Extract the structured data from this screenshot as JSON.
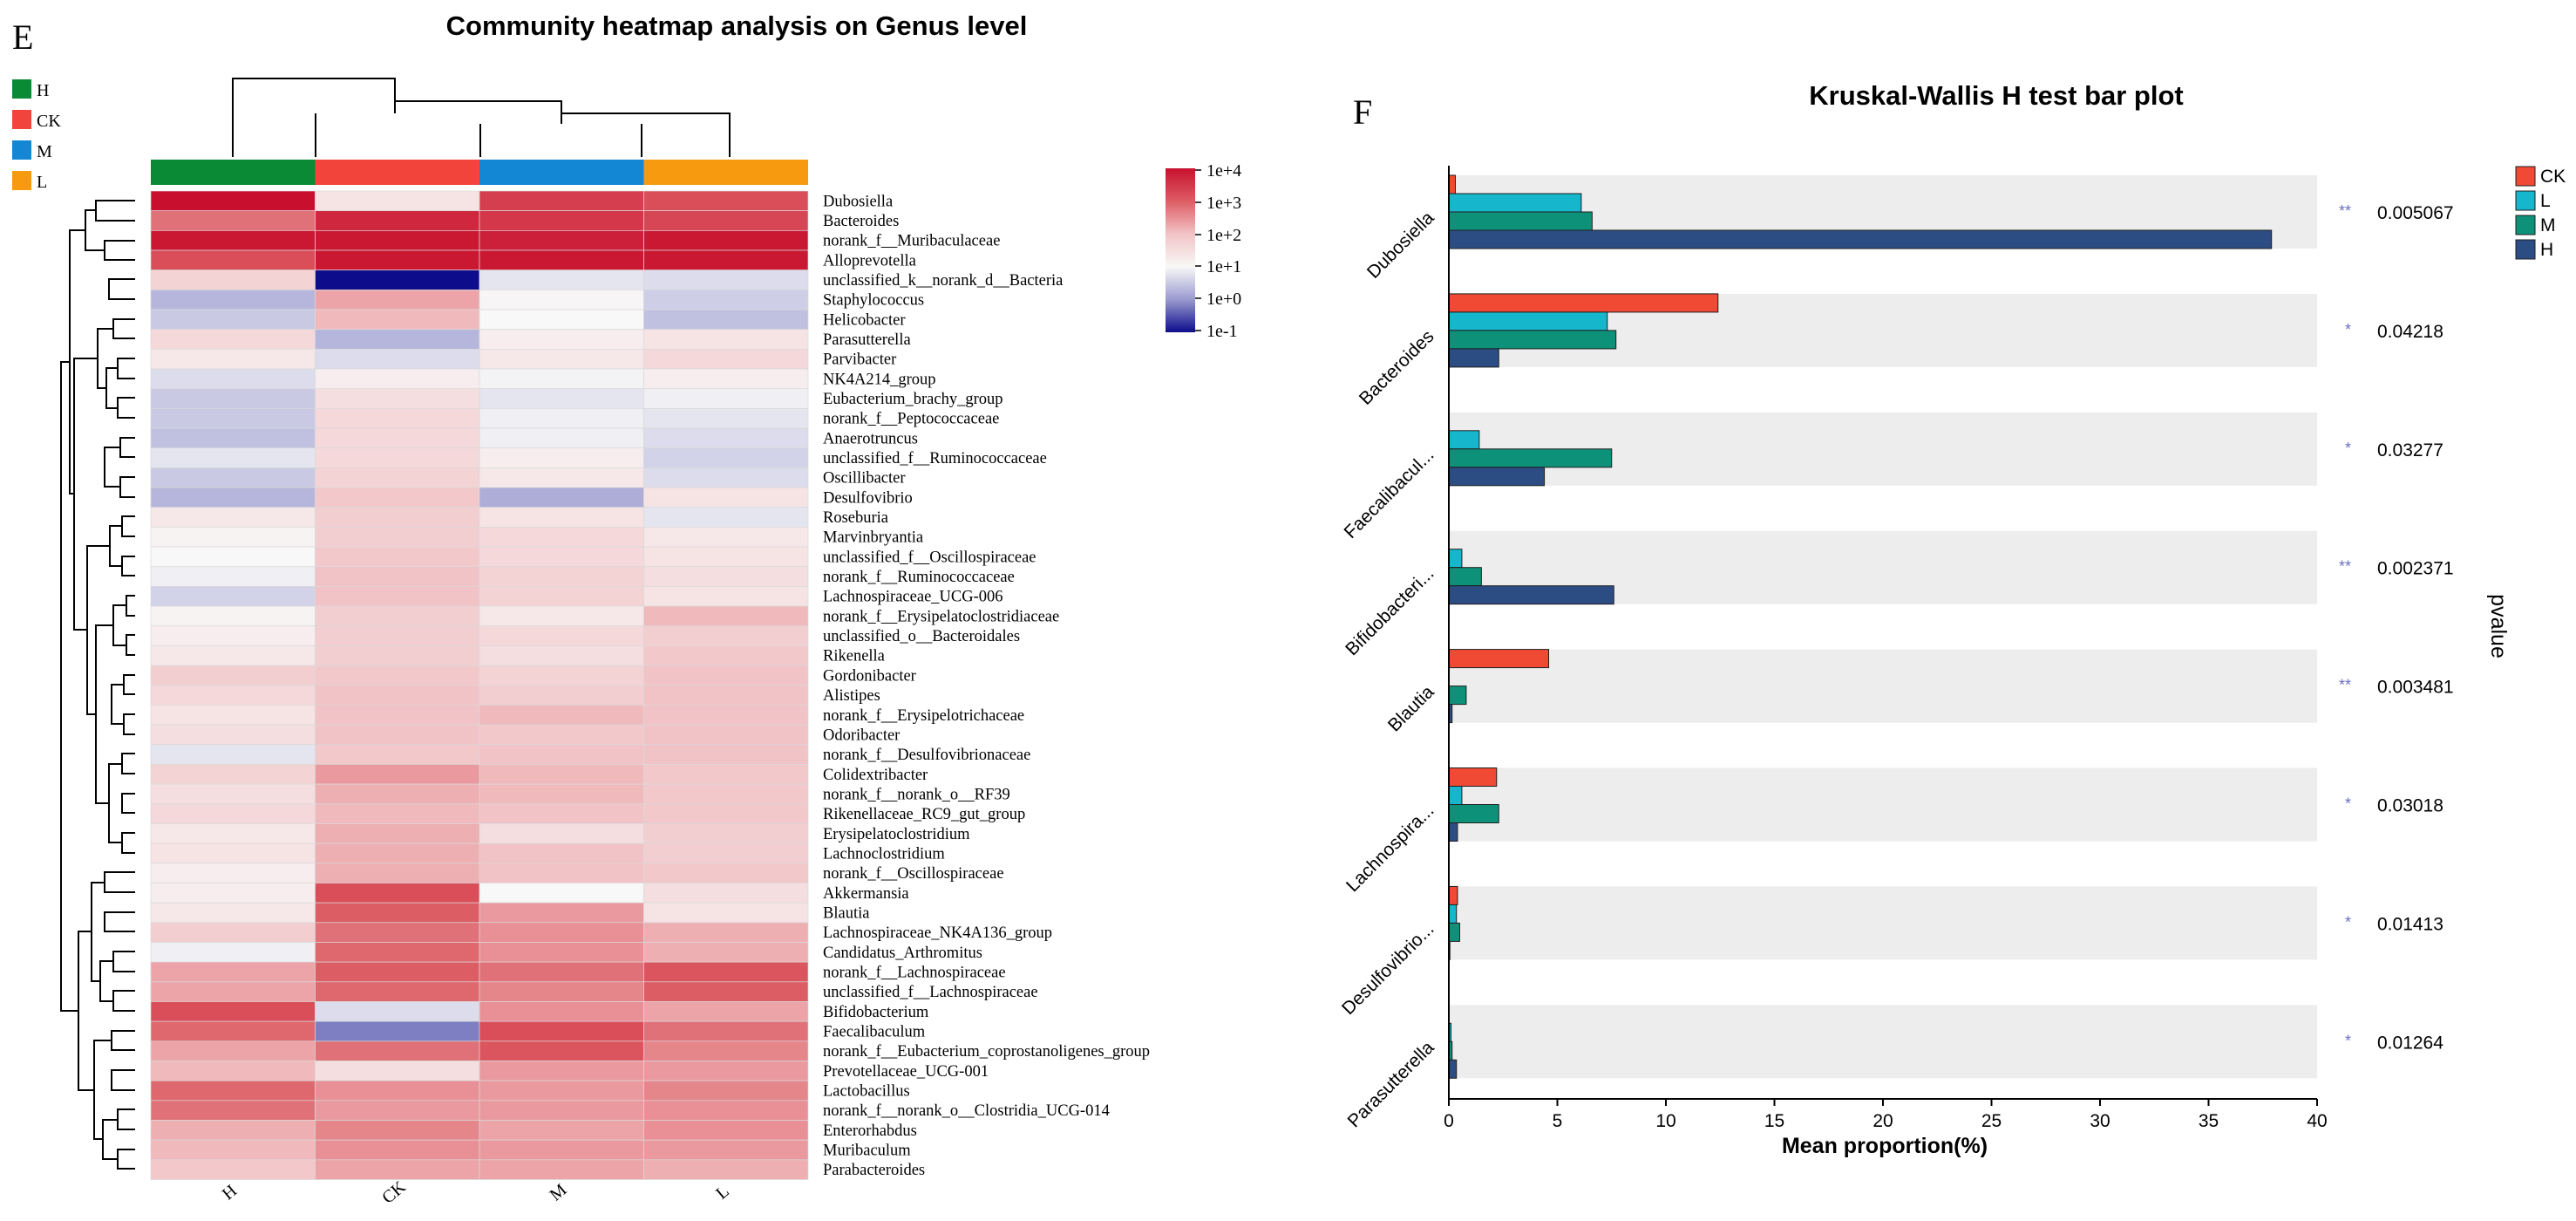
{
  "panel_e": {
    "letter": "E"
  },
  "panel_f": {
    "letter": "F"
  },
  "chart_data": [
    {
      "type": "heatmap",
      "title": "Community heatmap analysis on Genus level",
      "columns": [
        "H",
        "CK",
        "M",
        "L"
      ],
      "group_legend": [
        {
          "name": "H",
          "color": "#0a8a35"
        },
        {
          "name": "CK",
          "color": "#f2443a"
        },
        {
          "name": "M",
          "color": "#1487d4"
        },
        {
          "name": "L",
          "color": "#f79a10"
        }
      ],
      "colorbar": {
        "ticks": [
          "1e+4",
          "1e+3",
          "1e+2",
          "1e+1",
          "1e+0",
          "1e-1"
        ]
      },
      "rows": [
        {
          "name": "Dubosiella",
          "values": [
            4.0,
            1.4,
            3.4,
            3.2
          ]
        },
        {
          "name": "Bacteroides",
          "values": [
            2.8,
            3.7,
            3.5,
            3.3
          ]
        },
        {
          "name": "norank_f__Muribaculaceae",
          "values": [
            3.9,
            3.9,
            3.8,
            3.9
          ]
        },
        {
          "name": "Alloprevotella",
          "values": [
            3.2,
            3.9,
            3.9,
            3.9
          ]
        },
        {
          "name": "unclassified_k__norank_d__Bacteria",
          "values": [
            1.7,
            -1.0,
            0.8,
            0.7
          ]
        },
        {
          "name": "Staphylococcus",
          "values": [
            0.3,
            2.3,
            1.05,
            0.55
          ]
        },
        {
          "name": "Helicobacter",
          "values": [
            0.5,
            2.1,
            1.0,
            0.4
          ]
        },
        {
          "name": "Parasutterella",
          "values": [
            1.6,
            0.3,
            1.2,
            1.4
          ]
        },
        {
          "name": "Parvibacter",
          "values": [
            1.3,
            0.7,
            1.3,
            1.6
          ]
        },
        {
          "name": "NK4A214_group",
          "values": [
            0.7,
            1.2,
            0.95,
            1.2
          ]
        },
        {
          "name": "Eubacterium_brachy_group",
          "values": [
            0.5,
            1.5,
            0.8,
            0.9
          ]
        },
        {
          "name": "norank_f__Peptococcaceae",
          "values": [
            0.5,
            1.6,
            0.9,
            0.8
          ]
        },
        {
          "name": "Anaerotruncus",
          "values": [
            0.4,
            1.6,
            0.9,
            0.7
          ]
        },
        {
          "name": "unclassified_f__Ruminococcaceae",
          "values": [
            0.8,
            1.6,
            1.2,
            0.6
          ]
        },
        {
          "name": "Oscillibacter",
          "values": [
            0.5,
            1.7,
            1.3,
            0.7
          ]
        },
        {
          "name": "Desulfovibrio",
          "values": [
            0.3,
            1.9,
            0.2,
            1.4
          ]
        },
        {
          "name": "Roseburia",
          "values": [
            1.3,
            1.8,
            1.4,
            0.8
          ]
        },
        {
          "name": "Marvinbryantia",
          "values": [
            1.1,
            1.8,
            1.6,
            1.3
          ]
        },
        {
          "name": "unclassified_f__Oscillospiraceae",
          "values": [
            1.0,
            1.9,
            1.6,
            1.4
          ]
        },
        {
          "name": "norank_f__Ruminococcaceae",
          "values": [
            0.9,
            2.0,
            1.7,
            1.5
          ]
        },
        {
          "name": "Lachnospiraceae_UCG-006",
          "values": [
            0.6,
            2.0,
            1.7,
            1.4
          ]
        },
        {
          "name": "norank_f__Erysipelatoclostridiaceae",
          "values": [
            1.1,
            1.8,
            1.3,
            2.1
          ]
        },
        {
          "name": "unclassified_o__Bacteroidales",
          "values": [
            1.2,
            1.8,
            1.6,
            1.8
          ]
        },
        {
          "name": "Rikenella",
          "values": [
            1.3,
            1.8,
            1.5,
            1.9
          ]
        },
        {
          "name": "Gordonibacter",
          "values": [
            1.8,
            1.9,
            1.7,
            2.0
          ]
        },
        {
          "name": "Alistipes",
          "values": [
            1.6,
            2.0,
            1.8,
            2.0
          ]
        },
        {
          "name": "norank_f__Erysipelotrichaceae",
          "values": [
            1.4,
            2.0,
            2.1,
            2.0
          ]
        },
        {
          "name": "Odoribacter",
          "values": [
            1.5,
            2.0,
            1.9,
            2.0
          ]
        },
        {
          "name": "norank_f__Desulfovibrionaceae",
          "values": [
            0.8,
            1.9,
            2.0,
            2.0
          ]
        },
        {
          "name": "Colidextribacter",
          "values": [
            1.7,
            2.4,
            2.1,
            1.9
          ]
        },
        {
          "name": "norank_f__norank_o__RF39",
          "values": [
            1.5,
            2.2,
            2.1,
            1.9
          ]
        },
        {
          "name": "Rikenellaceae_RC9_gut_group",
          "values": [
            1.6,
            2.1,
            2.0,
            1.9
          ]
        },
        {
          "name": "Erysipelatoclostridium",
          "values": [
            1.3,
            2.2,
            1.5,
            1.8
          ]
        },
        {
          "name": "Lachnoclostridium",
          "values": [
            1.4,
            2.2,
            2.0,
            1.8
          ]
        },
        {
          "name": "norank_f__Oscillospiraceae",
          "values": [
            1.2,
            2.2,
            2.0,
            1.9
          ]
        },
        {
          "name": "Akkermansia",
          "values": [
            1.2,
            3.2,
            1.0,
            1.5
          ]
        },
        {
          "name": "Blautia",
          "values": [
            1.3,
            3.0,
            2.4,
            1.4
          ]
        },
        {
          "name": "Lachnospiraceae_NK4A136_group",
          "values": [
            1.8,
            2.8,
            2.5,
            2.2
          ]
        },
        {
          "name": "Candidatus_Arthromitus",
          "values": [
            0.9,
            2.9,
            2.5,
            2.2
          ]
        },
        {
          "name": "norank_f__Lachnospiraceae",
          "values": [
            2.3,
            3.0,
            2.8,
            3.1
          ]
        },
        {
          "name": "unclassified_f__Lachnospiraceae",
          "values": [
            2.3,
            2.9,
            2.6,
            3.0
          ]
        },
        {
          "name": "Bifidobacterium",
          "values": [
            3.2,
            0.7,
            2.5,
            2.3
          ]
        },
        {
          "name": "Faecalibaculum",
          "values": [
            2.9,
            -0.2,
            3.2,
            2.8
          ]
        },
        {
          "name": "norank_f__Eubacterium_coprostanoligenes_group",
          "values": [
            2.3,
            2.8,
            3.1,
            2.6
          ]
        },
        {
          "name": "Prevotellaceae_UCG-001",
          "values": [
            2.1,
            1.5,
            2.4,
            2.4
          ]
        },
        {
          "name": "Lactobacillus",
          "values": [
            2.9,
            2.5,
            2.4,
            2.6
          ]
        },
        {
          "name": "norank_f__norank_o__Clostridia_UCG-014",
          "values": [
            2.8,
            2.4,
            2.4,
            2.5
          ]
        },
        {
          "name": "Enterorhabdus",
          "values": [
            2.2,
            2.6,
            2.3,
            2.5
          ]
        },
        {
          "name": "Muribaculum",
          "values": [
            2.1,
            2.5,
            2.4,
            2.4
          ]
        },
        {
          "name": "Parabacteroides",
          "values": [
            1.9,
            2.3,
            2.3,
            2.2
          ]
        }
      ]
    },
    {
      "type": "bar",
      "orientation": "horizontal",
      "title": "Kruskal-Wallis H test bar plot",
      "xlabel": "Mean proportion(%)",
      "ylabel": "pvalue",
      "xlim": [
        0,
        40
      ],
      "xticks": [
        "0",
        "5",
        "10",
        "15",
        "20",
        "25",
        "30",
        "35",
        "40"
      ],
      "legend_position": "right",
      "series": [
        {
          "name": "CK",
          "color": "#f04a35"
        },
        {
          "name": "L",
          "color": "#16b6cc"
        },
        {
          "name": "M",
          "color": "#0d9279"
        },
        {
          "name": "H",
          "color": "#2c4c84"
        }
      ],
      "categories": [
        {
          "label": "Dubosiella",
          "values": [
            0.3,
            6.1,
            6.6,
            37.9
          ],
          "stars": "**",
          "pvalue": "0.005067"
        },
        {
          "label": "Bacteroides",
          "values": [
            12.4,
            7.3,
            7.7,
            2.3
          ],
          "stars": "*",
          "pvalue": "0.04218"
        },
        {
          "label": "Faecalibacul...",
          "values": [
            0.0,
            1.4,
            7.5,
            4.4
          ],
          "stars": "*",
          "pvalue": "0.03277"
        },
        {
          "label": "Bifidobacteri...",
          "values": [
            0.0,
            0.6,
            1.5,
            7.6
          ],
          "stars": "**",
          "pvalue": "0.002371"
        },
        {
          "label": "Blautia",
          "values": [
            4.6,
            0.0,
            0.8,
            0.15
          ],
          "stars": "**",
          "pvalue": "0.003481"
        },
        {
          "label": "Lachnospira...",
          "values": [
            2.2,
            0.6,
            2.3,
            0.4
          ],
          "stars": "*",
          "pvalue": "0.03018"
        },
        {
          "label": "Desulfovibrio...",
          "values": [
            0.4,
            0.35,
            0.5,
            0.05
          ],
          "stars": "*",
          "pvalue": "0.01413"
        },
        {
          "label": "Parasutterella",
          "values": [
            0.0,
            0.1,
            0.15,
            0.35
          ],
          "stars": "*",
          "pvalue": "0.01264"
        }
      ]
    }
  ]
}
